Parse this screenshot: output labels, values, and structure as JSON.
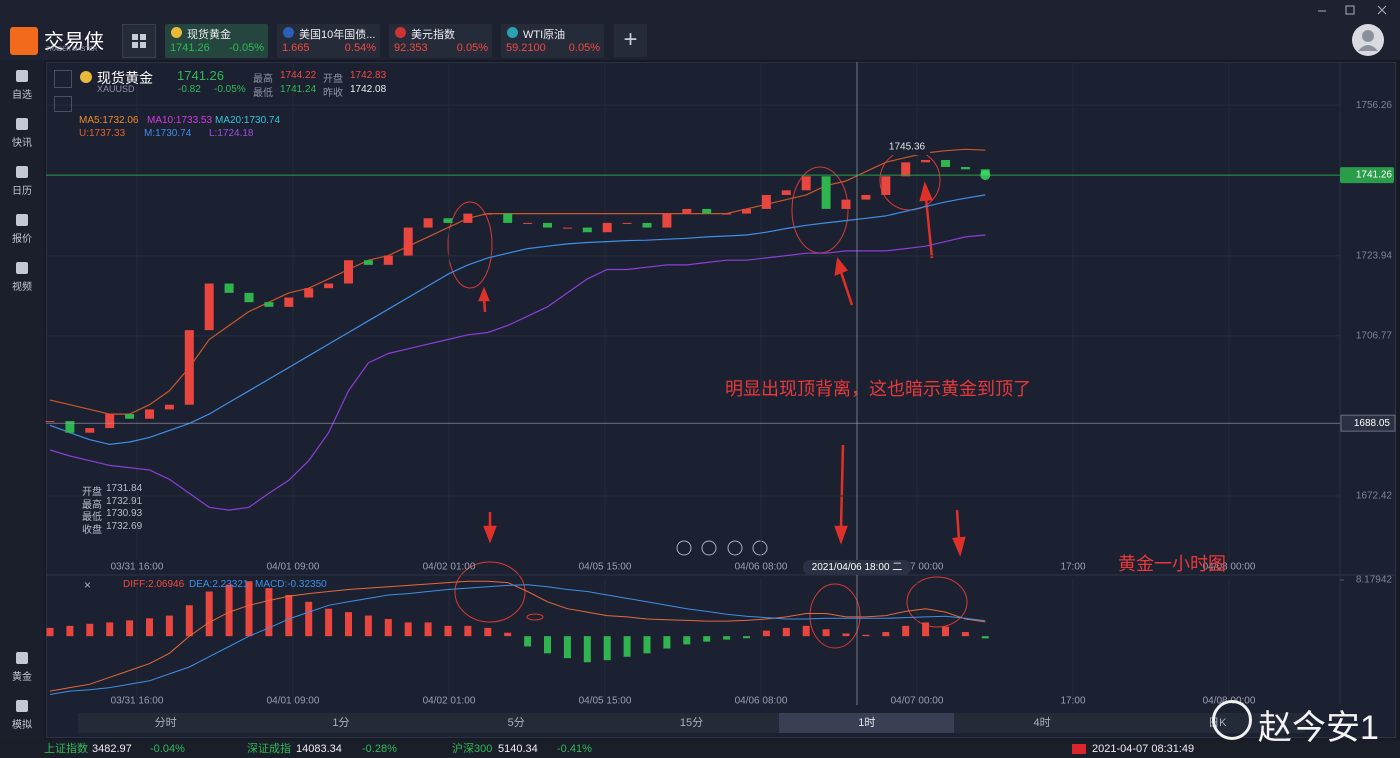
{
  "app": {
    "logo": "交易侠",
    "logo_sub": "TRADER MASTER"
  },
  "tabs": [
    {
      "name": "现货黄金",
      "price": "1741.26",
      "change": "-0.05%"
    },
    {
      "name": "美国10年国债...",
      "price": "1.665",
      "change": "0.54%"
    },
    {
      "name": "美元指数",
      "price": "92.353",
      "change": "0.05%"
    },
    {
      "name": "WTI原油",
      "price": "59.2100",
      "change": "0.05%"
    }
  ],
  "sidebar_top": [
    "自选",
    "快讯",
    "日历",
    "报价",
    "视频"
  ],
  "sidebar_bottom": [
    "黄金",
    "模拟"
  ],
  "quote": {
    "name": "现货黄金",
    "code": "XAUUSD",
    "price": "1741.26",
    "change": "-0.82",
    "change_pct": "-0.05%",
    "high_label": "最高",
    "high": "1744.22",
    "open_label": "开盘",
    "open": "1742.83",
    "low_label": "最低",
    "low": "1741.24",
    "prev_label": "昨收",
    "prev": "1742.08"
  },
  "ma_labels": [
    "MA5:1732.06",
    "MA10:1733.53",
    "MA20:1730.74"
  ],
  "boll_labels": [
    "U:1737.33",
    "M:1730.74",
    "L:1724.18"
  ],
  "tooltip": [
    [
      "开盘",
      "1731.84"
    ],
    [
      "最高",
      "1732.91"
    ],
    [
      "最低",
      "1730.93"
    ],
    [
      "收盘",
      "1732.69"
    ]
  ],
  "peak_label": "1745.36",
  "annotations": {
    "note": "明显出现顶背离，这也暗示黄金到顶了",
    "caption": "黄金一小时图"
  },
  "crosshair": {
    "time": "2021/04/06 18:00 二",
    "price": 1688.05
  },
  "chart": {
    "ylim": [
      1658.7,
      1763.8
    ],
    "yticks": [
      1756.26,
      1723.94,
      1706.77,
      1672.42
    ],
    "last_price": 1741.26,
    "time_labels": [
      "03/31 16:00",
      "04/01 09:00",
      "04/02 01:00",
      "04/05 15:00",
      "04/06 08:00",
      "04/07 00:00",
      "17:00",
      "04/08 00:00"
    ],
    "closes": [
      1688.5,
      1686,
      1687,
      1690,
      1689,
      1691,
      1692,
      1708,
      1718,
      1716,
      1714,
      1713,
      1715,
      1717,
      1718,
      1723,
      1722,
      1724,
      1730,
      1732,
      1731,
      1733,
      1733,
      1731,
      1731,
      1730,
      1730,
      1729,
      1731,
      1731,
      1730,
      1733,
      1734,
      1733,
      1733,
      1734,
      1737,
      1738,
      1741,
      1734,
      1736,
      1737,
      1741,
      1744,
      1744.5,
      1743,
      1742.5,
      1741.26
    ],
    "upper": [
      1693,
      1692,
      1691,
      1690,
      1690,
      1692,
      1695,
      1700,
      1706,
      1709,
      1712,
      1714,
      1716,
      1717,
      1719,
      1721,
      1723,
      1724,
      1726,
      1728,
      1730,
      1732,
      1733,
      1733,
      1733,
      1733,
      1733,
      1733,
      1733,
      1733,
      1733,
      1733,
      1733,
      1733,
      1733,
      1734,
      1735,
      1736,
      1737,
      1739,
      1740,
      1742,
      1744,
      1745,
      1746,
      1746.5,
      1746.8,
      1746.6
    ],
    "middle": [
      1687.6,
      1686,
      1684.5,
      1683.5,
      1684,
      1685,
      1686.5,
      1688,
      1690,
      1692.5,
      1695,
      1697.5,
      1700,
      1702.5,
      1705,
      1707.5,
      1710,
      1712.5,
      1715,
      1717.5,
      1720,
      1722,
      1723.5,
      1724.5,
      1725.5,
      1726,
      1726.5,
      1726.8,
      1727,
      1727.2,
      1727.3,
      1727.5,
      1727.7,
      1728,
      1728.2,
      1728.4,
      1729,
      1729.8,
      1730.5,
      1731,
      1731.5,
      1732,
      1732.5,
      1733.5,
      1734.5,
      1735.5,
      1736.3,
      1737
    ],
    "lower": [
      1682.3,
      1681,
      1680,
      1679,
      1678.5,
      1678,
      1676,
      1673,
      1670,
      1669.4,
      1670,
      1673,
      1675.8,
      1680,
      1686,
      1695,
      1701,
      1703,
      1704,
      1705,
      1706,
      1707,
      1707.5,
      1709,
      1711,
      1713,
      1716,
      1719,
      1721,
      1721,
      1721.5,
      1722,
      1722,
      1722.5,
      1723,
      1723,
      1723.5,
      1724,
      1724.5,
      1724.5,
      1725,
      1725,
      1725,
      1725.5,
      1726,
      1727,
      1728,
      1728.4
    ]
  },
  "macd": {
    "labels": [
      "DIFF:2.06946",
      "DEA:2.23321",
      "MACD:-0.32350"
    ],
    "ylim": [
      -9.3,
      8.17942
    ],
    "yticks": [
      8.17942
    ],
    "hist": [
      1.2,
      1.5,
      1.8,
      2,
      2.3,
      2.6,
      3,
      4.5,
      6.5,
      7.5,
      8,
      7,
      6,
      5,
      4,
      3.5,
      3,
      2.5,
      2,
      2,
      1.5,
      1.5,
      1.2,
      0.5,
      -1.5,
      -2.5,
      -3.2,
      -3.8,
      -3.5,
      -3,
      -2.5,
      -1.8,
      -1.2,
      -0.8,
      -0.5,
      -0.3,
      0.8,
      1.2,
      1.5,
      1,
      0.4,
      0.2,
      0.6,
      1.5,
      2,
      1.4,
      0.6,
      -0.3235
    ],
    "dif": [
      -8,
      -7.5,
      -7,
      -6,
      -5,
      -4,
      -2.5,
      0,
      2,
      3.5,
      4.5,
      5.2,
      5.8,
      6.2,
      6.5,
      6.8,
      7,
      7.2,
      7.4,
      7.6,
      7.8,
      8,
      8,
      7.8,
      6.5,
      5,
      4,
      3.5,
      3,
      2.8,
      2.5,
      2.4,
      2.3,
      2.2,
      2.2,
      2.3,
      2.5,
      2.8,
      3.3,
      3.3,
      2.8,
      2.8,
      3,
      3.6,
      4,
      3.5,
      2.5,
      2.06946
    ],
    "dea": [
      -8.5,
      -8,
      -7.8,
      -7.5,
      -7,
      -6.5,
      -5.5,
      -4.5,
      -3,
      -1.5,
      0,
      1.2,
      2.5,
      3.5,
      4.5,
      5,
      5.5,
      6,
      6.2,
      6.5,
      6.8,
      7,
      7.2,
      7.4,
      7.5,
      7.2,
      6.8,
      6.5,
      6,
      5.5,
      5,
      4.5,
      4,
      3.6,
      3.2,
      2.9,
      2.7,
      2.5,
      2.5,
      2.6,
      2.6,
      2.6,
      2.6,
      2.7,
      2.8,
      2.9,
      2.6,
      2.23321
    ]
  },
  "periods": [
    "分时",
    "1分",
    "5分",
    "15分",
    "1时",
    "4时",
    "日K"
  ],
  "active_period": "1时",
  "status": {
    "indices": [
      {
        "name": "上证指数",
        "value": "3482.97",
        "change": "-0.04%"
      },
      {
        "name": "深证成指",
        "value": "14083.34",
        "change": "-0.28%"
      },
      {
        "name": "沪深300",
        "value": "5140.34",
        "change": "-0.41%"
      }
    ],
    "datetime": "2021-04-07 08:31:49"
  },
  "watermark": "赵今安1"
}
